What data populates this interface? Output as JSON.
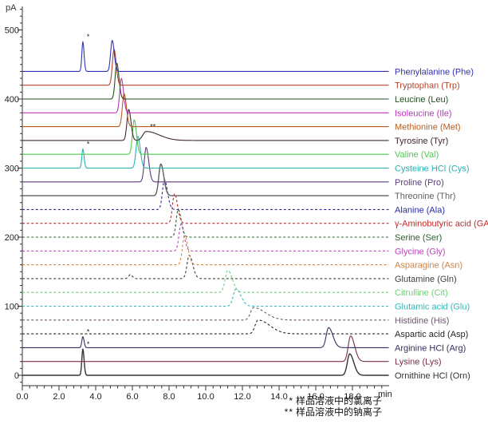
{
  "chart_data": {
    "type": "line",
    "title": "",
    "xlabel": "min",
    "ylabel": "pA",
    "x_axis": {
      "label": "min",
      "min": 0,
      "max": 20,
      "major_tick_interval": 2.0,
      "minor_tick_interval": 0.4,
      "tick_labels": [
        "0.0",
        "2.0",
        "4.0",
        "6.0",
        "8.0",
        "10.0",
        "12.0",
        "14.0",
        "16.0",
        "18.0"
      ]
    },
    "y_axis": {
      "label": "pA",
      "min": 0,
      "max": 530,
      "major_tick_interval": 100,
      "minor_tick_interval": 10,
      "tick_labels": [
        "0",
        "100",
        "200",
        "300",
        "400",
        "500"
      ]
    },
    "grid": false,
    "legend_position": "right-of-each-trace",
    "baseline_offset_step_pA": 20,
    "series": [
      {
        "name": "Phenylalanine (Phe)",
        "abbr": "Phe",
        "color": "#3232b4",
        "dashed": false,
        "baseline_pA": 440,
        "peaks": [
          {
            "t_min": 3.3,
            "height_pA": 43,
            "sigma_min": 0.055,
            "tail": 1.2,
            "marker": "*"
          },
          {
            "t_min": 4.9,
            "height_pA": 45,
            "sigma_min": 0.085,
            "tail": 1.3
          }
        ]
      },
      {
        "name": "Tryptophan (Trp)",
        "abbr": "Trp",
        "color": "#b4462d",
        "dashed": false,
        "baseline_pA": 420,
        "peaks": [
          {
            "t_min": 5.0,
            "height_pA": 52,
            "sigma_min": 0.09,
            "tail": 1.3
          }
        ]
      },
      {
        "name": "Leucine (Leu)",
        "abbr": "Leu",
        "color": "#234f23",
        "dashed": false,
        "baseline_pA": 400,
        "peaks": [
          {
            "t_min": 5.15,
            "height_pA": 52,
            "sigma_min": 0.09,
            "tail": 1.3
          }
        ]
      },
      {
        "name": "Isoleucine (Ile)",
        "abbr": "Ile",
        "color": "#bb35bb",
        "dashed": false,
        "baseline_pA": 380,
        "peaks": [
          {
            "t_min": 5.4,
            "height_pA": 50,
            "sigma_min": 0.09,
            "tail": 1.3
          }
        ]
      },
      {
        "name": "Methionine (Met)",
        "abbr": "Met",
        "color": "#b85c1e",
        "dashed": false,
        "baseline_pA": 360,
        "peaks": [
          {
            "t_min": 5.55,
            "height_pA": 48,
            "sigma_min": 0.095,
            "tail": 1.3
          }
        ]
      },
      {
        "name": "Tyrosine (Tyr)",
        "abbr": "Tyr",
        "color": "#41282d",
        "dashed": false,
        "baseline_pA": 340,
        "peaks": [
          {
            "t_min": 5.8,
            "height_pA": 45,
            "sigma_min": 0.095,
            "tail": 1.3
          },
          {
            "t_min": 6.75,
            "height_pA": 13,
            "sigma_min": 0.18,
            "tail": 4.0,
            "marker": "**"
          }
        ]
      },
      {
        "name": "Valine (Val)",
        "abbr": "Val",
        "color": "#4fc84f",
        "dashed": false,
        "baseline_pA": 320,
        "peaks": [
          {
            "t_min": 6.1,
            "height_pA": 50,
            "sigma_min": 0.095,
            "tail": 1.3
          }
        ]
      },
      {
        "name": "Cysteine HCl (Cys)",
        "abbr": "Cys",
        "color": "#29b2b2",
        "dashed": false,
        "baseline_pA": 300,
        "peaks": [
          {
            "t_min": 3.3,
            "height_pA": 28,
            "sigma_min": 0.055,
            "tail": 1.2,
            "marker": "*"
          },
          {
            "t_min": 6.3,
            "height_pA": 46,
            "sigma_min": 0.1,
            "tail": 1.3
          }
        ]
      },
      {
        "name": "Proline (Pro)",
        "abbr": "Pro",
        "color": "#5a3c78",
        "dashed": false,
        "baseline_pA": 280,
        "peaks": [
          {
            "t_min": 6.75,
            "height_pA": 50,
            "sigma_min": 0.1,
            "tail": 1.4
          }
        ]
      },
      {
        "name": "Threonine (Thr)",
        "abbr": "Thr",
        "color": "#5f5f5f",
        "dashed": false,
        "baseline_pA": 260,
        "peaks": [
          {
            "t_min": 7.55,
            "height_pA": 46,
            "sigma_min": 0.11,
            "tail": 1.5
          }
        ]
      },
      {
        "name": "Alanine (Ala)",
        "abbr": "Ala",
        "color": "#2b2ba0",
        "dashed": true,
        "baseline_pA": 240,
        "peaks": [
          {
            "t_min": 7.75,
            "height_pA": 43,
            "sigma_min": 0.11,
            "tail": 1.5
          }
        ]
      },
      {
        "name": "γ-Aminobutyric acid (GABA)",
        "abbr": "GABA",
        "color": "#c12a2a",
        "dashed": true,
        "baseline_pA": 220,
        "peaks": [
          {
            "t_min": 8.3,
            "height_pA": 43,
            "sigma_min": 0.11,
            "tail": 1.5
          }
        ]
      },
      {
        "name": "Serine (Ser)",
        "abbr": "Ser",
        "color": "#2d5f2d",
        "dashed": true,
        "baseline_pA": 200,
        "peaks": [
          {
            "t_min": 8.5,
            "height_pA": 40,
            "sigma_min": 0.11,
            "tail": 1.5
          }
        ]
      },
      {
        "name": "Glycine (Gly)",
        "abbr": "Gly",
        "color": "#bb46bb",
        "dashed": true,
        "baseline_pA": 180,
        "peaks": [
          {
            "t_min": 8.65,
            "height_pA": 39,
            "sigma_min": 0.11,
            "tail": 1.5
          }
        ]
      },
      {
        "name": "Asparagine (Asn)",
        "abbr": "Asn",
        "color": "#d38441",
        "dashed": true,
        "baseline_pA": 160,
        "peaks": [
          {
            "t_min": 8.85,
            "height_pA": 42,
            "sigma_min": 0.12,
            "tail": 1.5
          }
        ]
      },
      {
        "name": "Glutamine (Gln)",
        "abbr": "Gln",
        "color": "#3f3f3f",
        "dashed": true,
        "baseline_pA": 140,
        "peaks": [
          {
            "t_min": 5.9,
            "height_pA": 6,
            "sigma_min": 0.1,
            "tail": 1.0
          },
          {
            "t_min": 9.1,
            "height_pA": 34,
            "sigma_min": 0.12,
            "tail": 1.6
          }
        ]
      },
      {
        "name": "Citrulline (Cit)",
        "abbr": "Cit",
        "color": "#6fcf7a",
        "dashed": true,
        "baseline_pA": 120,
        "peaks": [
          {
            "t_min": 11.2,
            "height_pA": 32,
            "sigma_min": 0.14,
            "tail": 1.8
          }
        ]
      },
      {
        "name": "Glutamic acid (Glu)",
        "abbr": "Glu",
        "color": "#35b7b7",
        "dashed": true,
        "baseline_pA": 100,
        "peaks": [
          {
            "t_min": 11.65,
            "height_pA": 25,
            "sigma_min": 0.15,
            "tail": 1.8
          }
        ]
      },
      {
        "name": "Histidine (His)",
        "abbr": "His",
        "color": "#6f566f",
        "dashed": true,
        "baseline_pA": 80,
        "peaks": [
          {
            "t_min": 12.6,
            "height_pA": 18,
            "sigma_min": 0.16,
            "tail": 4.0
          }
        ]
      },
      {
        "name": "Aspartic acid (Asp)",
        "abbr": "Asp",
        "color": "#262626",
        "dashed": true,
        "baseline_pA": 60,
        "peaks": [
          {
            "t_min": 12.85,
            "height_pA": 20,
            "sigma_min": 0.16,
            "tail": 4.0
          }
        ]
      },
      {
        "name": "Arginine HCl (Arg)",
        "abbr": "Arg",
        "color": "#303060",
        "dashed": false,
        "baseline_pA": 40,
        "peaks": [
          {
            "t_min": 3.3,
            "height_pA": 16,
            "sigma_min": 0.055,
            "tail": 1.2,
            "marker": "*"
          },
          {
            "t_min": 16.7,
            "height_pA": 29,
            "sigma_min": 0.13,
            "tail": 1.8
          }
        ]
      },
      {
        "name": "Lysine (Lys)",
        "abbr": "Lys",
        "color": "#7a2e44",
        "dashed": false,
        "baseline_pA": 20,
        "peaks": [
          {
            "t_min": 17.9,
            "height_pA": 37,
            "sigma_min": 0.13,
            "tail": 1.7
          }
        ]
      },
      {
        "name": "Ornithine HCl (Orn)",
        "abbr": "Orn",
        "color": "#333333",
        "dashed": false,
        "baseline_pA": 0,
        "peaks": [
          {
            "t_min": 3.3,
            "height_pA": 38,
            "sigma_min": 0.055,
            "tail": 1.2,
            "marker": "*"
          },
          {
            "t_min": 17.85,
            "height_pA": 31,
            "sigma_min": 0.13,
            "tail": 1.7
          }
        ]
      }
    ]
  },
  "footnotes": [
    {
      "marker": "*",
      "text": "样品溶液中的氯离子"
    },
    {
      "marker": "**",
      "text": "样品溶液中的钠离子"
    }
  ]
}
